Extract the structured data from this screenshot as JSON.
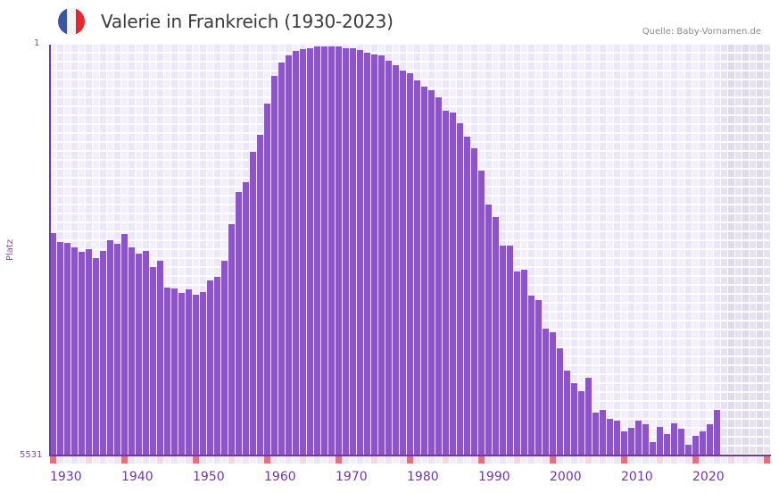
{
  "header": {
    "title": "Valerie in Frankreich (1930-2023)",
    "source": "Quelle: Baby-Vornamen.de",
    "flag_icon": "france-flag-icon",
    "flag_colors": [
      "#3a55a4",
      "#f4f4f6",
      "#e8262c"
    ]
  },
  "colors": {
    "bar": "#8b55c6",
    "axis": "#6b3aa6",
    "grid_col_a": "#f3effb",
    "grid_col_b": "#ece7f7",
    "future_col_a": "#e6e2ee",
    "future_col_b": "#dfdaea",
    "marker_decade": "#e4717a",
    "marker_half": "#f6d6df",
    "marker_plain_a": "#f2eefa",
    "marker_plain_b": "#ebe6f6"
  },
  "axis": {
    "y_top_label": "1",
    "y_bottom_label": "5531",
    "y_title": "Platz"
  },
  "chart_data": {
    "type": "bar",
    "title": "Valerie in Frankreich (1930-2023)",
    "xlabel": "",
    "ylabel": "Platz",
    "y_inverted": true,
    "ylim": [
      5531,
      1
    ],
    "x_range": [
      1930,
      2030
    ],
    "data_end_year": 2023,
    "grid": true,
    "legend": null,
    "x_tick_labels": [
      "1930",
      "1940",
      "1950",
      "1960",
      "1970",
      "1980",
      "1990",
      "2000",
      "2010",
      "2020"
    ],
    "categories": [
      1930,
      1931,
      1932,
      1933,
      1934,
      1935,
      1936,
      1937,
      1938,
      1939,
      1940,
      1941,
      1942,
      1943,
      1944,
      1945,
      1946,
      1947,
      1948,
      1949,
      1950,
      1951,
      1952,
      1953,
      1954,
      1955,
      1956,
      1957,
      1958,
      1959,
      1960,
      1961,
      1962,
      1963,
      1964,
      1965,
      1966,
      1967,
      1968,
      1969,
      1970,
      1971,
      1972,
      1973,
      1974,
      1975,
      1976,
      1977,
      1978,
      1979,
      1980,
      1981,
      1982,
      1983,
      1984,
      1985,
      1986,
      1987,
      1988,
      1989,
      1990,
      1991,
      1992,
      1993,
      1994,
      1995,
      1996,
      1997,
      1998,
      1999,
      2000,
      2001,
      2002,
      2003,
      2004,
      2005,
      2006,
      2007,
      2008,
      2009,
      2010,
      2011,
      2012,
      2013,
      2014,
      2015,
      2016,
      2017,
      2018,
      2019,
      2020,
      2021,
      2022,
      2023
    ],
    "values": [
      2534,
      2654,
      2666,
      2726,
      2786,
      2750,
      2870,
      2774,
      2630,
      2678,
      2546,
      2726,
      2810,
      2774,
      2990,
      2906,
      3267,
      3283,
      3343,
      3295,
      3367,
      3327,
      3174,
      3126,
      2910,
      2413,
      1981,
      1852,
      1443,
      1215,
      794,
      422,
      241,
      145,
      82,
      58,
      45,
      21,
      21,
      21,
      21,
      45,
      45,
      70,
      106,
      130,
      142,
      214,
      274,
      346,
      382,
      478,
      562,
      610,
      707,
      887,
      911,
      1055,
      1235,
      1392,
      1692,
      2149,
      2317,
      2702,
      2702,
      3051,
      3027,
      3375,
      3435,
      3820,
      3868,
      4084,
      4385,
      4553,
      4661,
      4481,
      4950,
      4914,
      5034,
      5058,
      5202,
      5154,
      5058,
      5106,
      5346,
      5142,
      5238,
      5094,
      5166,
      5383,
      5262,
      5202,
      5106,
      4914
    ]
  }
}
